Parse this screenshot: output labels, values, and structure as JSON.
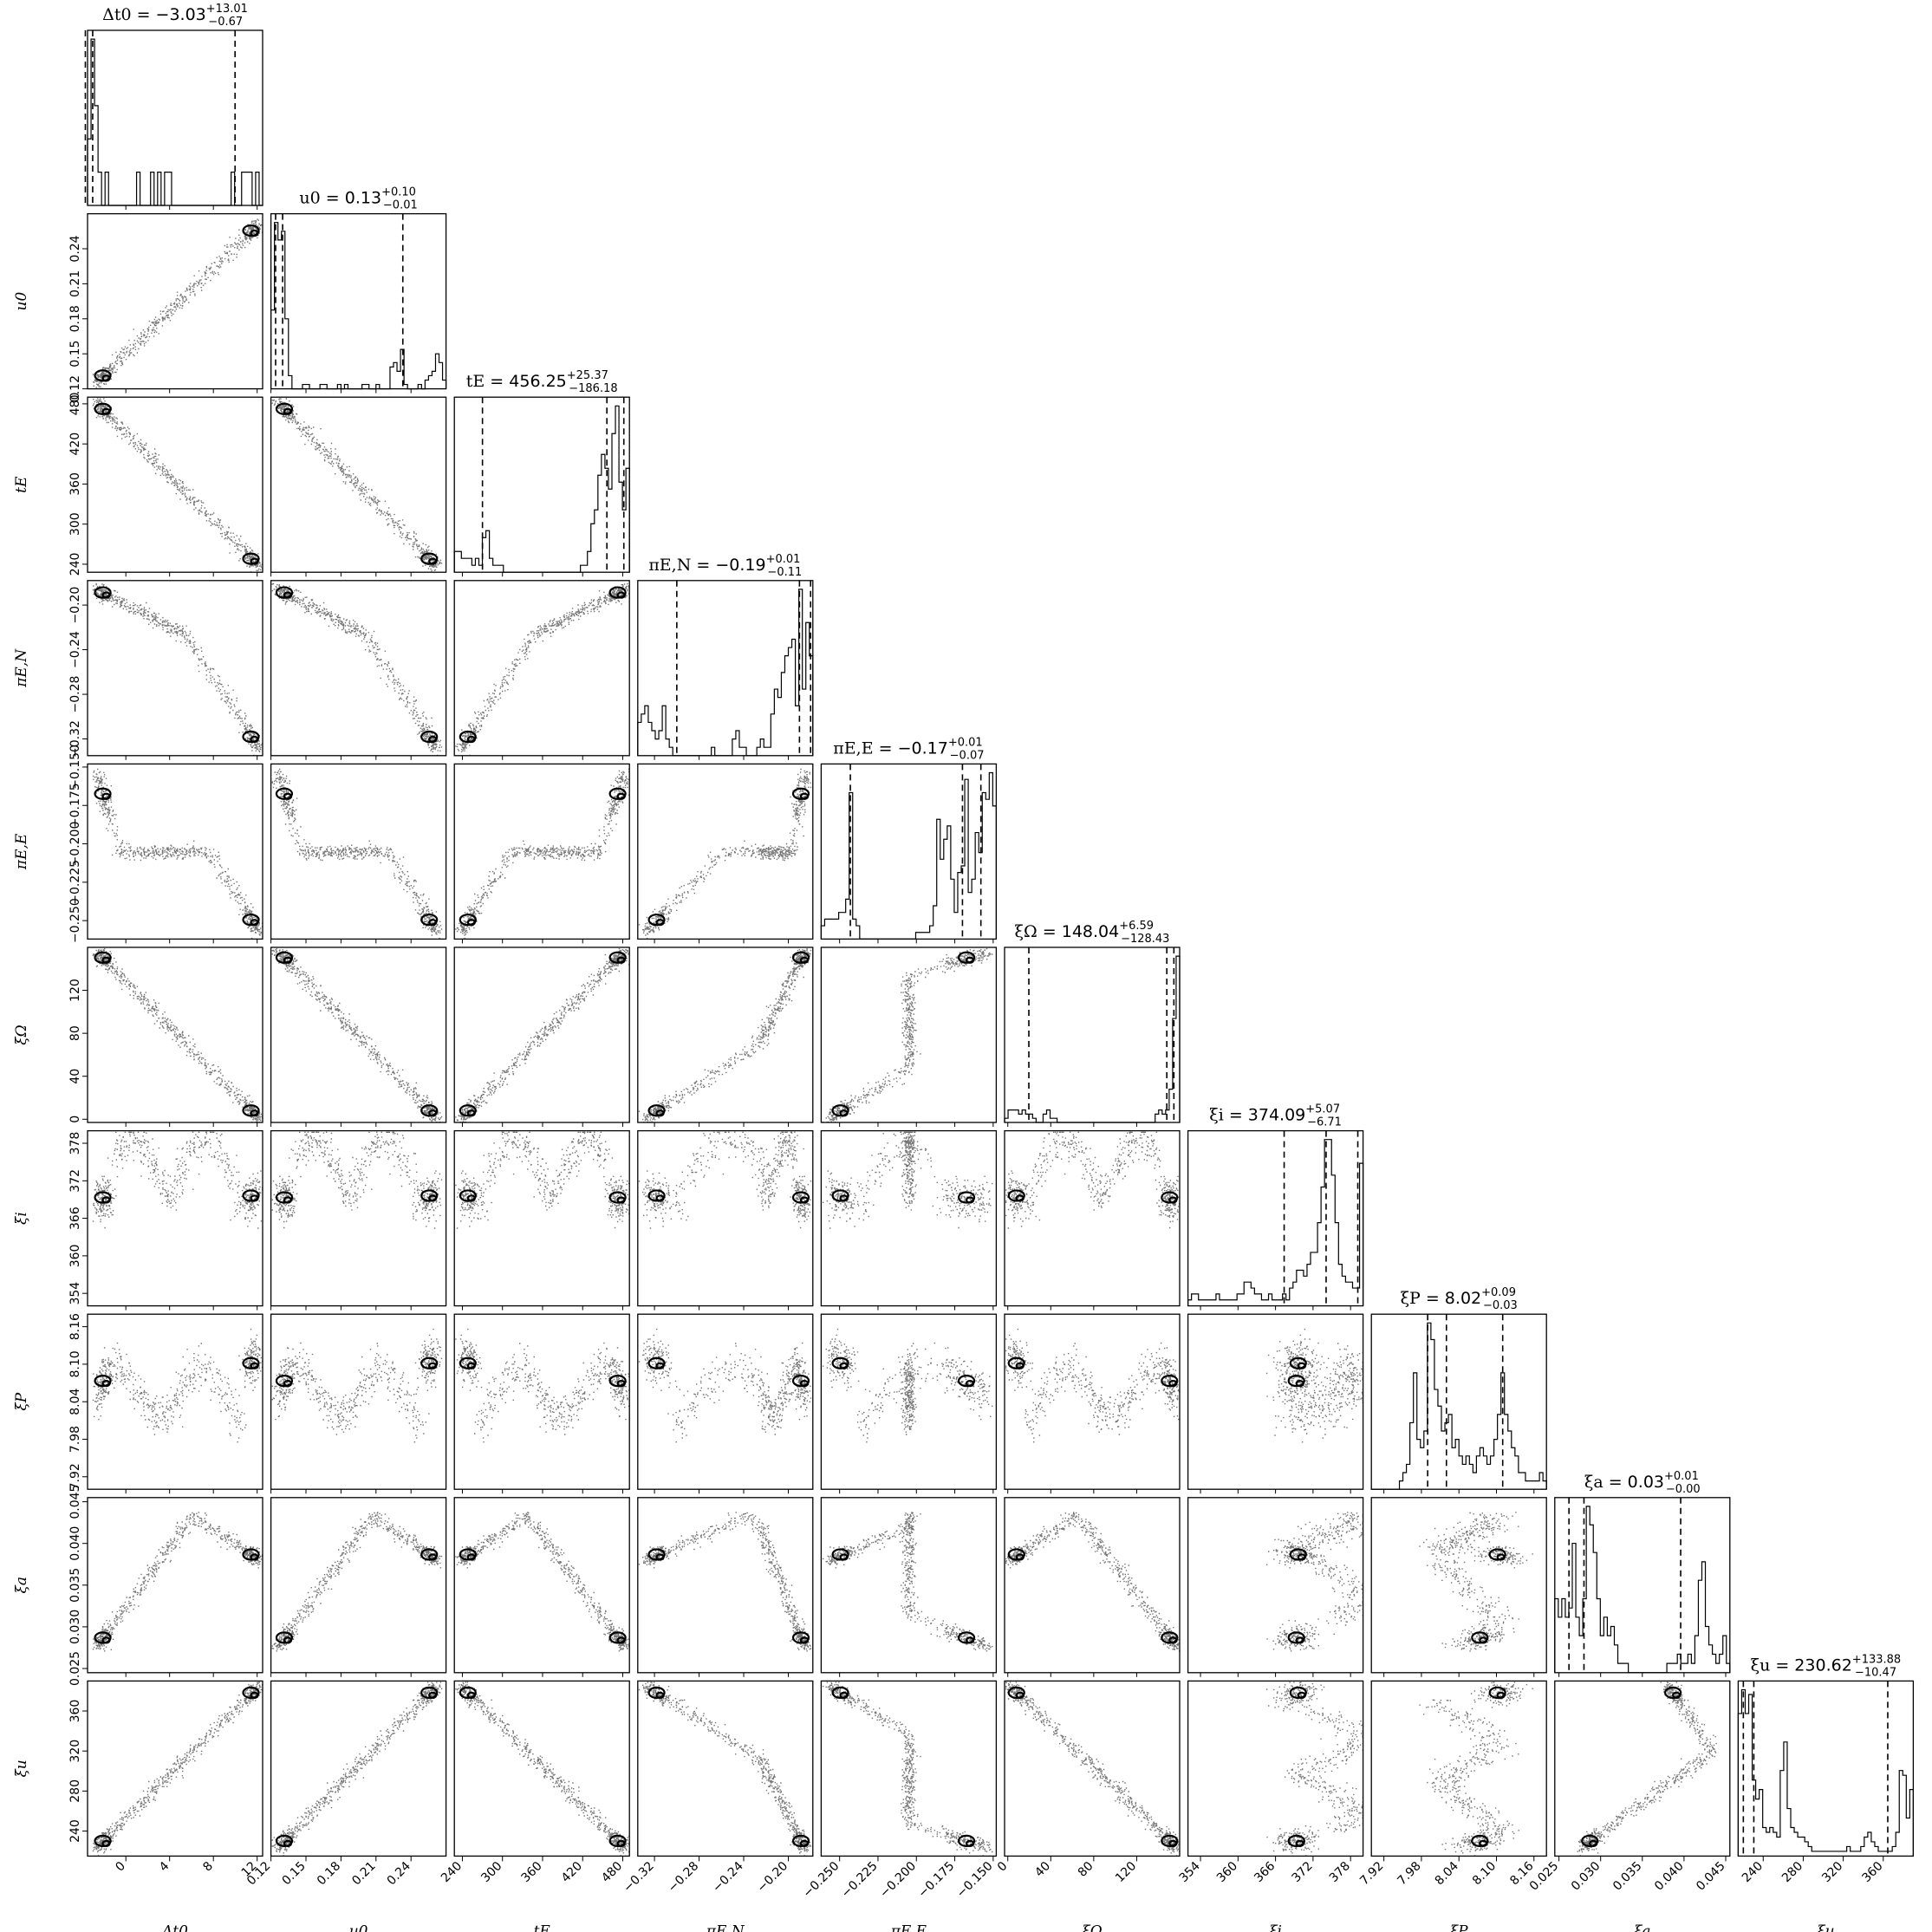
{
  "chart_data": {
    "type": "corner",
    "parameters": [
      {
        "key": "dt0",
        "label": "Δt0",
        "title_value": "−3.03",
        "title_plus": "+13.01",
        "title_minus": "−0.67",
        "range": [
          -3.5,
          12.5
        ],
        "ticks": [
          0,
          4,
          8,
          12
        ],
        "tick_labels": [
          "0",
          "4",
          "8",
          "12"
        ],
        "median": -3.03,
        "quantiles": [
          -3.7,
          -3.03,
          9.98
        ]
      },
      {
        "key": "u0",
        "label": "u0",
        "title_value": "0.13",
        "title_plus": "+0.10",
        "title_minus": "−0.01",
        "range": [
          0.12,
          0.27
        ],
        "ticks": [
          0.12,
          0.15,
          0.18,
          0.21,
          0.24
        ],
        "tick_labels": [
          "0.12",
          "0.15",
          "0.18",
          "0.21",
          "0.24"
        ],
        "median": 0.13,
        "quantiles": [
          0.124,
          0.13,
          0.233
        ]
      },
      {
        "key": "tE",
        "label": "tE",
        "title_value": "456.25",
        "title_plus": "+25.37",
        "title_minus": "−186.18",
        "range": [
          228,
          490
        ],
        "ticks": [
          240,
          300,
          360,
          420,
          480
        ],
        "tick_labels": [
          "240",
          "300",
          "360",
          "420",
          "480"
        ],
        "median": 456.25,
        "quantiles": [
          270.07,
          456.25,
          481.62
        ]
      },
      {
        "key": "piEN",
        "label": "πE,N",
        "title_value": "−0.19",
        "title_plus": "+0.01",
        "title_minus": "−0.11",
        "range": [
          -0.335,
          -0.178
        ],
        "ticks": [
          -0.32,
          -0.28,
          -0.24,
          -0.2
        ],
        "tick_labels": [
          "−0.32",
          "−0.28",
          "−0.24",
          "−0.20"
        ],
        "median": -0.19,
        "quantiles": [
          -0.3,
          -0.19,
          -0.18
        ]
      },
      {
        "key": "piEE",
        "label": "πE,E",
        "title_value": "−0.17",
        "title_plus": "+0.01",
        "title_minus": "−0.07",
        "range": [
          -0.262,
          -0.148
        ],
        "ticks": [
          -0.25,
          -0.225,
          -0.2,
          -0.175,
          -0.15
        ],
        "tick_labels": [
          "−0.250",
          "−0.225",
          "−0.200",
          "−0.175",
          "−0.150"
        ],
        "median": -0.17,
        "quantiles": [
          -0.243,
          -0.17,
          -0.158
        ]
      },
      {
        "key": "xiO",
        "label": "ξΩ",
        "title_value": "148.04",
        "title_plus": "+6.59",
        "title_minus": "−128.43",
        "range": [
          -3,
          160
        ],
        "ticks": [
          0,
          40,
          80,
          120
        ],
        "tick_labels": [
          "0",
          "40",
          "80",
          "120"
        ],
        "median": 148.04,
        "quantiles": [
          19.61,
          148.04,
          154.63
        ]
      },
      {
        "key": "xii",
        "label": "ξi",
        "title_value": "374.09",
        "title_plus": "+5.07",
        "title_minus": "−6.71",
        "range": [
          352,
          380
        ],
        "ticks": [
          354,
          360,
          366,
          372,
          378
        ],
        "tick_labels": [
          "354",
          "360",
          "366",
          "372",
          "378"
        ],
        "median": 374.09,
        "quantiles": [
          367.38,
          374.09,
          379.16
        ]
      },
      {
        "key": "xiP",
        "label": "ξP",
        "title_value": "8.02",
        "title_plus": "+0.09",
        "title_minus": "−0.03",
        "range": [
          7.9,
          8.18
        ],
        "ticks": [
          7.92,
          7.98,
          8.04,
          8.1,
          8.16
        ],
        "tick_labels": [
          "7.92",
          "7.98",
          "8.04",
          "8.10",
          "8.16"
        ],
        "median": 8.02,
        "quantiles": [
          7.99,
          8.02,
          8.11
        ]
      },
      {
        "key": "xia",
        "label": "ξa",
        "title_value": "0.03",
        "title_plus": "+0.01",
        "title_minus": "−0.00",
        "range": [
          0.0245,
          0.0455
        ],
        "ticks": [
          0.025,
          0.03,
          0.035,
          0.04,
          0.045
        ],
        "tick_labels": [
          "0.025",
          "0.030",
          "0.035",
          "0.040",
          "0.045"
        ],
        "median": 0.028,
        "quantiles": [
          0.0262,
          0.028,
          0.0396
        ]
      },
      {
        "key": "xiu",
        "label": "ξu",
        "title_value": "230.62",
        "title_plus": "+133.88",
        "title_minus": "−10.47",
        "range": [
          215,
          390
        ],
        "ticks": [
          240,
          280,
          320,
          360
        ],
        "tick_labels": [
          "240",
          "280",
          "320",
          "360"
        ],
        "median": 230.62,
        "quantiles": [
          220.15,
          230.62,
          364.5
        ]
      }
    ],
    "histograms": {
      "dt0": [
        2,
        5,
        3,
        1,
        0,
        1,
        0,
        0,
        0,
        0,
        0,
        0,
        0,
        0,
        1,
        0,
        0,
        0,
        1,
        0,
        1,
        0,
        1,
        1,
        0,
        0,
        0,
        0,
        0,
        0,
        0,
        0,
        0,
        0,
        0,
        0,
        0,
        0,
        0,
        0,
        0,
        1,
        0,
        0,
        1,
        1,
        1,
        0,
        1,
        0
      ],
      "u0": [
        18,
        38,
        34,
        36,
        16,
        3,
        0,
        0,
        0,
        1,
        1,
        0,
        0,
        0,
        1,
        1,
        0,
        0,
        0,
        1,
        0,
        1,
        0,
        0,
        0,
        0,
        1,
        1,
        0,
        0,
        1,
        0,
        0,
        0,
        5,
        6,
        4,
        9,
        1,
        0,
        0,
        0,
        1,
        0,
        2,
        3,
        4,
        8,
        6,
        2
      ],
      "tE": [
        3,
        3,
        2,
        2,
        2,
        1,
        2,
        1,
        5,
        6,
        2,
        1,
        1,
        1,
        0,
        0,
        0,
        0,
        0,
        0,
        0,
        0,
        0,
        0,
        0,
        0,
        0,
        0,
        0,
        0,
        0,
        0,
        0,
        0,
        0,
        0,
        1,
        1,
        3,
        7,
        9,
        14,
        17,
        15,
        12,
        20,
        24,
        13,
        9,
        15
      ],
      "piEN": [
        4,
        5,
        6,
        4,
        3,
        2,
        3,
        6,
        2,
        1,
        0,
        0,
        0,
        0,
        0,
        0,
        0,
        0,
        0,
        0,
        0,
        1,
        0,
        0,
        0,
        0,
        0,
        2,
        3,
        1,
        1,
        0,
        0,
        0,
        1,
        2,
        1,
        1,
        5,
        8,
        7,
        10,
        12,
        13,
        14,
        6,
        20,
        8,
        16,
        12
      ],
      "piEE": [
        2,
        3,
        3,
        3,
        3,
        4,
        4,
        6,
        22,
        3,
        2,
        0,
        0,
        0,
        0,
        0,
        0,
        0,
        0,
        0,
        0,
        0,
        0,
        0,
        0,
        0,
        0,
        1,
        1,
        1,
        1,
        2,
        5,
        18,
        12,
        15,
        17,
        9,
        4,
        10,
        11,
        24,
        7,
        9,
        16,
        13,
        22,
        21,
        25,
        20
      ],
      "xiO": [
        1,
        3,
        3,
        3,
        2,
        3,
        2,
        2,
        1,
        0,
        0,
        2,
        3,
        1,
        1,
        0,
        0,
        0,
        0,
        0,
        0,
        0,
        0,
        0,
        0,
        0,
        0,
        0,
        0,
        0,
        0,
        0,
        0,
        0,
        0,
        0,
        0,
        0,
        0,
        0,
        0,
        0,
        0,
        2,
        3,
        2,
        3,
        8,
        25,
        40
      ],
      "xii": [
        1,
        2,
        2,
        1,
        1,
        1,
        1,
        1,
        2,
        1,
        1,
        1,
        1,
        1,
        2,
        2,
        4,
        4,
        3,
        2,
        2,
        1,
        1,
        2,
        1,
        1,
        1,
        2,
        1,
        3,
        4,
        6,
        6,
        5,
        7,
        9,
        9,
        14,
        20,
        28,
        28,
        22,
        14,
        7,
        5,
        4,
        4,
        3,
        3,
        24
      ],
      "xiP": [
        0,
        0,
        0,
        0,
        0,
        0,
        0,
        0,
        1,
        2,
        3,
        8,
        14,
        6,
        5,
        7,
        20,
        18,
        12,
        10,
        7,
        8,
        9,
        5,
        6,
        4,
        3,
        4,
        3,
        2,
        4,
        5,
        4,
        3,
        4,
        6,
        9,
        14,
        9,
        7,
        5,
        4,
        2,
        2,
        1,
        1,
        1,
        1,
        2,
        1
      ],
      "xia": [
        8,
        6,
        8,
        6,
        7,
        14,
        6,
        4,
        8,
        18,
        16,
        13,
        8,
        4,
        6,
        4,
        5,
        3,
        1,
        1,
        1,
        0,
        0,
        0,
        0,
        0,
        0,
        0,
        0,
        0,
        0,
        0,
        1,
        1,
        1,
        2,
        1,
        1,
        2,
        1,
        4,
        10,
        12,
        5,
        3,
        2,
        1,
        2,
        4,
        1
      ],
      "xiu": [
        30,
        35,
        30,
        34,
        16,
        12,
        14,
        6,
        5,
        6,
        5,
        4,
        18,
        24,
        10,
        6,
        5,
        4,
        4,
        3,
        2,
        1,
        1,
        1,
        1,
        1,
        1,
        1,
        1,
        1,
        1,
        2,
        1,
        1,
        1,
        2,
        4,
        5,
        3,
        2,
        1,
        1,
        1,
        1,
        2,
        5,
        18,
        17,
        8,
        14
      ]
    }
  }
}
